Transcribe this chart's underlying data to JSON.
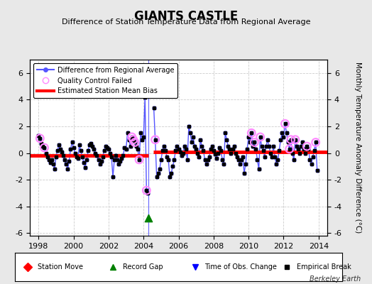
{
  "title": "GIANTS CASTLE",
  "subtitle": "Difference of Station Temperature Data from Regional Average",
  "ylabel": "Monthly Temperature Anomaly Difference (°C)",
  "xlabel_ticks": [
    1998,
    2000,
    2002,
    2004,
    2006,
    2008,
    2010,
    2012,
    2014
  ],
  "ylim": [
    -6.2,
    7.0
  ],
  "yticks": [
    -6,
    -4,
    -2,
    0,
    2,
    4,
    6
  ],
  "xlim": [
    1997.5,
    2014.5
  ],
  "bias_segment1": {
    "x": [
      1997.5,
      2004.27
    ],
    "y": [
      -0.18,
      -0.18
    ]
  },
  "bias_segment2": {
    "x": [
      2004.55,
      2014.5
    ],
    "y": [
      0.07,
      0.07
    ]
  },
  "vertical_line_x": 2004.27,
  "record_gap_x": 2004.27,
  "record_gap_y": -4.85,
  "watermark": "Berkeley Earth",
  "background_color": "#e8e8e8",
  "plot_bg_color": "#ffffff",
  "grid_color": "#cccccc",
  "line_color": "#5555ff",
  "bias_color": "#ff0000",
  "qc_color": "#ff88ff",
  "data_color": "#000000",
  "series": [
    {
      "t": 1998.0,
      "v": 1.3,
      "qc": false
    },
    {
      "t": 1998.083,
      "v": 1.1,
      "qc": true
    },
    {
      "t": 1998.167,
      "v": 0.7,
      "qc": false
    },
    {
      "t": 1998.25,
      "v": 0.5,
      "qc": false
    },
    {
      "t": 1998.333,
      "v": 0.4,
      "qc": true
    },
    {
      "t": 1998.417,
      "v": 0.0,
      "qc": false
    },
    {
      "t": 1998.5,
      "v": -0.3,
      "qc": false
    },
    {
      "t": 1998.583,
      "v": -0.5,
      "qc": false
    },
    {
      "t": 1998.667,
      "v": -0.7,
      "qc": false
    },
    {
      "t": 1998.75,
      "v": -0.5,
      "qc": false
    },
    {
      "t": 1998.833,
      "v": -0.8,
      "qc": false
    },
    {
      "t": 1998.917,
      "v": -1.2,
      "qc": false
    },
    {
      "t": 1999.0,
      "v": -0.3,
      "qc": false
    },
    {
      "t": 1999.083,
      "v": 0.2,
      "qc": false
    },
    {
      "t": 1999.167,
      "v": 0.6,
      "qc": false
    },
    {
      "t": 1999.25,
      "v": 0.3,
      "qc": false
    },
    {
      "t": 1999.333,
      "v": 0.1,
      "qc": false
    },
    {
      "t": 1999.417,
      "v": -0.2,
      "qc": false
    },
    {
      "t": 1999.5,
      "v": -0.5,
      "qc": false
    },
    {
      "t": 1999.583,
      "v": -0.8,
      "qc": false
    },
    {
      "t": 1999.667,
      "v": -1.2,
      "qc": false
    },
    {
      "t": 1999.75,
      "v": -0.6,
      "qc": false
    },
    {
      "t": 1999.833,
      "v": 0.3,
      "qc": false
    },
    {
      "t": 1999.917,
      "v": 0.8,
      "qc": false
    },
    {
      "t": 2000.0,
      "v": 0.4,
      "qc": false
    },
    {
      "t": 2000.083,
      "v": 0.0,
      "qc": false
    },
    {
      "t": 2000.167,
      "v": -0.3,
      "qc": false
    },
    {
      "t": 2000.25,
      "v": -0.4,
      "qc": false
    },
    {
      "t": 2000.333,
      "v": 0.6,
      "qc": false
    },
    {
      "t": 2000.417,
      "v": 0.2,
      "qc": false
    },
    {
      "t": 2000.5,
      "v": -0.3,
      "qc": false
    },
    {
      "t": 2000.583,
      "v": -0.7,
      "qc": false
    },
    {
      "t": 2000.667,
      "v": -1.1,
      "qc": false
    },
    {
      "t": 2000.75,
      "v": -0.5,
      "qc": false
    },
    {
      "t": 2000.833,
      "v": 0.2,
      "qc": false
    },
    {
      "t": 2000.917,
      "v": 0.6,
      "qc": false
    },
    {
      "t": 2001.0,
      "v": 0.7,
      "qc": false
    },
    {
      "t": 2001.083,
      "v": 0.5,
      "qc": false
    },
    {
      "t": 2001.167,
      "v": 0.3,
      "qc": false
    },
    {
      "t": 2001.25,
      "v": 0.0,
      "qc": false
    },
    {
      "t": 2001.333,
      "v": -0.2,
      "qc": false
    },
    {
      "t": 2001.417,
      "v": -0.5,
      "qc": false
    },
    {
      "t": 2001.5,
      "v": -0.8,
      "qc": false
    },
    {
      "t": 2001.583,
      "v": -0.6,
      "qc": false
    },
    {
      "t": 2001.667,
      "v": -0.3,
      "qc": false
    },
    {
      "t": 2001.75,
      "v": 0.2,
      "qc": false
    },
    {
      "t": 2001.833,
      "v": 0.5,
      "qc": false
    },
    {
      "t": 2001.917,
      "v": 0.4,
      "qc": false
    },
    {
      "t": 2002.0,
      "v": 0.3,
      "qc": false
    },
    {
      "t": 2002.083,
      "v": 0.0,
      "qc": false
    },
    {
      "t": 2002.167,
      "v": -0.3,
      "qc": false
    },
    {
      "t": 2002.25,
      "v": -1.8,
      "qc": false
    },
    {
      "t": 2002.333,
      "v": -0.5,
      "qc": false
    },
    {
      "t": 2002.417,
      "v": -0.2,
      "qc": false
    },
    {
      "t": 2002.5,
      "v": -0.5,
      "qc": false
    },
    {
      "t": 2002.583,
      "v": -0.8,
      "qc": false
    },
    {
      "t": 2002.667,
      "v": -0.6,
      "qc": false
    },
    {
      "t": 2002.75,
      "v": -0.4,
      "qc": false
    },
    {
      "t": 2002.833,
      "v": -0.2,
      "qc": false
    },
    {
      "t": 2002.917,
      "v": 0.4,
      "qc": false
    },
    {
      "t": 2003.0,
      "v": 0.3,
      "qc": false
    },
    {
      "t": 2003.083,
      "v": 1.5,
      "qc": false
    },
    {
      "t": 2003.167,
      "v": 1.0,
      "qc": false
    },
    {
      "t": 2003.25,
      "v": 0.5,
      "qc": false
    },
    {
      "t": 2003.333,
      "v": 1.2,
      "qc": true
    },
    {
      "t": 2003.417,
      "v": 1.0,
      "qc": true
    },
    {
      "t": 2003.5,
      "v": 0.8,
      "qc": true
    },
    {
      "t": 2003.583,
      "v": 0.5,
      "qc": false
    },
    {
      "t": 2003.667,
      "v": 0.3,
      "qc": false
    },
    {
      "t": 2003.75,
      "v": -0.5,
      "qc": true
    },
    {
      "t": 2003.833,
      "v": 1.5,
      "qc": false
    },
    {
      "t": 2003.917,
      "v": 1.0,
      "qc": false
    },
    {
      "t": 2004.0,
      "v": 1.2,
      "qc": false
    },
    {
      "t": 2004.083,
      "v": 4.2,
      "qc": false
    },
    {
      "t": 2004.167,
      "v": -2.8,
      "qc": true
    },
    {
      "t": 2004.25,
      "v": -3.0,
      "qc": false
    },
    {
      "t": 2004.583,
      "v": 3.4,
      "qc": false
    },
    {
      "t": 2004.667,
      "v": 1.0,
      "qc": true
    },
    {
      "t": 2004.75,
      "v": -1.8,
      "qc": false
    },
    {
      "t": 2004.833,
      "v": -1.5,
      "qc": false
    },
    {
      "t": 2004.917,
      "v": -1.2,
      "qc": false
    },
    {
      "t": 2005.0,
      "v": -0.5,
      "qc": false
    },
    {
      "t": 2005.083,
      "v": 0.2,
      "qc": false
    },
    {
      "t": 2005.167,
      "v": 0.5,
      "qc": false
    },
    {
      "t": 2005.25,
      "v": 0.2,
      "qc": false
    },
    {
      "t": 2005.333,
      "v": -0.3,
      "qc": false
    },
    {
      "t": 2005.417,
      "v": -0.5,
      "qc": false
    },
    {
      "t": 2005.5,
      "v": -1.8,
      "qc": false
    },
    {
      "t": 2005.583,
      "v": -1.5,
      "qc": false
    },
    {
      "t": 2005.667,
      "v": -1.0,
      "qc": false
    },
    {
      "t": 2005.75,
      "v": -0.5,
      "qc": false
    },
    {
      "t": 2005.833,
      "v": 0.2,
      "qc": false
    },
    {
      "t": 2005.917,
      "v": 0.5,
      "qc": false
    },
    {
      "t": 2006.0,
      "v": 0.3,
      "qc": false
    },
    {
      "t": 2006.083,
      "v": 0.1,
      "qc": false
    },
    {
      "t": 2006.167,
      "v": -0.2,
      "qc": false
    },
    {
      "t": 2006.25,
      "v": 0.0,
      "qc": false
    },
    {
      "t": 2006.333,
      "v": 0.5,
      "qc": false
    },
    {
      "t": 2006.417,
      "v": 0.3,
      "qc": false
    },
    {
      "t": 2006.5,
      "v": -0.5,
      "qc": false
    },
    {
      "t": 2006.583,
      "v": 2.0,
      "qc": false
    },
    {
      "t": 2006.667,
      "v": 1.5,
      "qc": false
    },
    {
      "t": 2006.75,
      "v": 0.8,
      "qc": false
    },
    {
      "t": 2006.833,
      "v": 1.2,
      "qc": false
    },
    {
      "t": 2006.917,
      "v": 0.5,
      "qc": false
    },
    {
      "t": 2007.0,
      "v": 0.3,
      "qc": false
    },
    {
      "t": 2007.083,
      "v": 0.0,
      "qc": false
    },
    {
      "t": 2007.167,
      "v": -0.3,
      "qc": false
    },
    {
      "t": 2007.25,
      "v": 1.0,
      "qc": false
    },
    {
      "t": 2007.333,
      "v": 0.5,
      "qc": false
    },
    {
      "t": 2007.417,
      "v": 0.2,
      "qc": false
    },
    {
      "t": 2007.5,
      "v": -0.5,
      "qc": false
    },
    {
      "t": 2007.583,
      "v": -0.8,
      "qc": false
    },
    {
      "t": 2007.667,
      "v": -0.5,
      "qc": false
    },
    {
      "t": 2007.75,
      "v": -0.3,
      "qc": false
    },
    {
      "t": 2007.833,
      "v": 0.3,
      "qc": false
    },
    {
      "t": 2007.917,
      "v": 0.5,
      "qc": false
    },
    {
      "t": 2008.0,
      "v": 0.2,
      "qc": false
    },
    {
      "t": 2008.083,
      "v": -0.1,
      "qc": false
    },
    {
      "t": 2008.167,
      "v": -0.4,
      "qc": false
    },
    {
      "t": 2008.25,
      "v": 0.0,
      "qc": false
    },
    {
      "t": 2008.333,
      "v": 0.4,
      "qc": false
    },
    {
      "t": 2008.417,
      "v": 0.2,
      "qc": false
    },
    {
      "t": 2008.5,
      "v": -0.5,
      "qc": false
    },
    {
      "t": 2008.583,
      "v": -0.8,
      "qc": false
    },
    {
      "t": 2008.667,
      "v": 1.5,
      "qc": false
    },
    {
      "t": 2008.75,
      "v": 1.0,
      "qc": false
    },
    {
      "t": 2008.833,
      "v": 0.5,
      "qc": false
    },
    {
      "t": 2008.917,
      "v": 0.3,
      "qc": false
    },
    {
      "t": 2009.0,
      "v": 0.0,
      "qc": false
    },
    {
      "t": 2009.083,
      "v": 0.3,
      "qc": false
    },
    {
      "t": 2009.167,
      "v": 0.5,
      "qc": false
    },
    {
      "t": 2009.25,
      "v": 0.0,
      "qc": false
    },
    {
      "t": 2009.333,
      "v": -0.3,
      "qc": false
    },
    {
      "t": 2009.417,
      "v": -0.5,
      "qc": false
    },
    {
      "t": 2009.5,
      "v": -0.8,
      "qc": false
    },
    {
      "t": 2009.583,
      "v": -0.5,
      "qc": false
    },
    {
      "t": 2009.667,
      "v": -0.3,
      "qc": false
    },
    {
      "t": 2009.75,
      "v": -1.5,
      "qc": false
    },
    {
      "t": 2009.833,
      "v": -0.8,
      "qc": false
    },
    {
      "t": 2009.917,
      "v": 0.3,
      "qc": false
    },
    {
      "t": 2010.0,
      "v": 1.2,
      "qc": false
    },
    {
      "t": 2010.083,
      "v": 0.8,
      "qc": false
    },
    {
      "t": 2010.167,
      "v": 1.5,
      "qc": true
    },
    {
      "t": 2010.25,
      "v": 0.5,
      "qc": false
    },
    {
      "t": 2010.333,
      "v": 0.8,
      "qc": true
    },
    {
      "t": 2010.417,
      "v": 0.3,
      "qc": false
    },
    {
      "t": 2010.5,
      "v": -0.5,
      "qc": false
    },
    {
      "t": 2010.583,
      "v": -1.2,
      "qc": false
    },
    {
      "t": 2010.667,
      "v": 1.2,
      "qc": true
    },
    {
      "t": 2010.75,
      "v": 0.5,
      "qc": false
    },
    {
      "t": 2010.833,
      "v": 0.2,
      "qc": false
    },
    {
      "t": 2010.917,
      "v": -0.3,
      "qc": false
    },
    {
      "t": 2011.0,
      "v": 0.5,
      "qc": false
    },
    {
      "t": 2011.083,
      "v": 1.0,
      "qc": false
    },
    {
      "t": 2011.167,
      "v": 0.5,
      "qc": false
    },
    {
      "t": 2011.25,
      "v": 0.0,
      "qc": false
    },
    {
      "t": 2011.333,
      "v": -0.3,
      "qc": false
    },
    {
      "t": 2011.417,
      "v": 0.5,
      "qc": false
    },
    {
      "t": 2011.5,
      "v": -0.3,
      "qc": false
    },
    {
      "t": 2011.583,
      "v": -0.8,
      "qc": false
    },
    {
      "t": 2011.667,
      "v": -0.5,
      "qc": false
    },
    {
      "t": 2011.75,
      "v": 0.2,
      "qc": false
    },
    {
      "t": 2011.833,
      "v": 1.0,
      "qc": false
    },
    {
      "t": 2011.917,
      "v": 1.5,
      "qc": false
    },
    {
      "t": 2012.0,
      "v": 1.2,
      "qc": false
    },
    {
      "t": 2012.083,
      "v": 2.2,
      "qc": true
    },
    {
      "t": 2012.167,
      "v": 1.5,
      "qc": false
    },
    {
      "t": 2012.25,
      "v": 0.8,
      "qc": false
    },
    {
      "t": 2012.333,
      "v": 0.3,
      "qc": true
    },
    {
      "t": 2012.417,
      "v": 1.0,
      "qc": true
    },
    {
      "t": 2012.5,
      "v": 0.0,
      "qc": false
    },
    {
      "t": 2012.583,
      "v": -0.5,
      "qc": false
    },
    {
      "t": 2012.667,
      "v": 1.0,
      "qc": true
    },
    {
      "t": 2012.75,
      "v": 0.5,
      "qc": false
    },
    {
      "t": 2012.833,
      "v": 0.3,
      "qc": false
    },
    {
      "t": 2012.917,
      "v": 0.0,
      "qc": false
    },
    {
      "t": 2013.0,
      "v": 0.5,
      "qc": false
    },
    {
      "t": 2013.083,
      "v": 0.8,
      "qc": false
    },
    {
      "t": 2013.167,
      "v": 0.3,
      "qc": false
    },
    {
      "t": 2013.25,
      "v": 0.0,
      "qc": false
    },
    {
      "t": 2013.333,
      "v": 0.5,
      "qc": true
    },
    {
      "t": 2013.417,
      "v": 0.3,
      "qc": false
    },
    {
      "t": 2013.5,
      "v": -0.5,
      "qc": false
    },
    {
      "t": 2013.583,
      "v": -0.8,
      "qc": false
    },
    {
      "t": 2013.667,
      "v": -0.3,
      "qc": false
    },
    {
      "t": 2013.75,
      "v": 0.2,
      "qc": false
    },
    {
      "t": 2013.833,
      "v": 0.8,
      "qc": true
    },
    {
      "t": 2013.917,
      "v": -1.3,
      "qc": false
    }
  ]
}
